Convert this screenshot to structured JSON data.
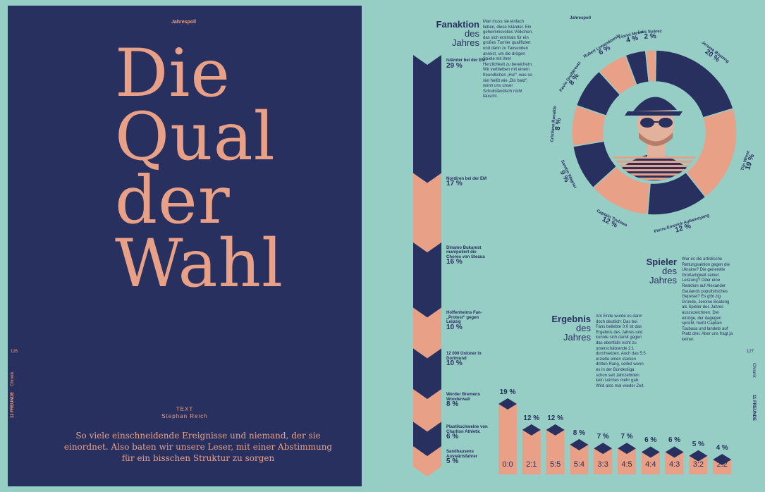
{
  "left_page": {
    "kicker": "Jahrespoll",
    "headline": [
      "Die",
      "Qual",
      "der",
      "Wahl"
    ],
    "text_label": "TEXT",
    "author": "Stephan Reich",
    "lead": "So viele einschneidende Ereignisse und niemand, der sie einordnet. Also baten wir unsere Leser, mit einer Abstimmung für ein bisschen Struktur zu sorgen",
    "page_number": "126",
    "section": "Chronik",
    "magazine": "11 FREUNDE"
  },
  "right_page": {
    "page_number": "127",
    "section": "Chronik",
    "magazine": "11 FREUNDE",
    "kicker": "Jahrespoll",
    "fanaktion": {
      "title": "Fanaktion",
      "subtitle_1": "des",
      "subtitle_2": "Jahres",
      "body": "Man muss sie einfach lieben, diese Isländer. Ein geheimnisvolles Völkchen, das sich erstmals für ein großes Turnier qualifiziert und dann zu Tausenden anreist, um die drögen Spiele mit ihrer Herzlichkeit zu bereichern. Wir verbleiben mit einem freundlichen „Hu!“, was so viel heißt wie „Bis bald“, wenn uns unser Schulisländisch nicht täuscht."
    },
    "spieler": {
      "title": "Spieler",
      "subtitle_1": "des",
      "subtitle_2": "Jahres",
      "body": "War es die artistische Rettungsaktion gegen die Ukraine? Die generelle Großartigkeit seiner Leistung? Oder eine Reaktion auf Alexander Gaulands populistisches Gepesel? Es gibt zig Gründe, Jerome Boateng als Spieler des Jahres auszuzeichnen. Der einzige, der dagegen spricht, heißt Captain Tsubasa und landete auf Platz drei. Aber uns fragt ja keiner."
    },
    "ergebnis": {
      "title": "Ergebnis",
      "subtitle_1": "des",
      "subtitle_2": "Jahres",
      "body": "Am Ende wurde es dann doch deutlich: Das bei Fans beliebte 0:0 ist das Ergebnis des Jahres und konnte sich damit gegen das ebenfalls nicht zu unterschätzende 2:1 durchsetzen. Auch das 5:5 erzielte einen starken dritten Rang, selbst wenn es in der Bundesliga schon seit Jahrzehnten kein solches mehr gab. Wird also mal wieder Zeit."
    },
    "fan_items": [
      {
        "label": "Isländer bei der EM",
        "pct": "29 %"
      },
      {
        "label": "Nordiren bei der EM",
        "pct": "17 %"
      },
      {
        "label": "Dinamo Bukarest manipuliert die Choreo von Steaua",
        "pct": "16 %"
      },
      {
        "label": "Hoffenheims Fan-„Protest“ gegen Leipzig",
        "pct": "10 %"
      },
      {
        "label": "12 000 Unioner in Dortmund",
        "pct": "10 %"
      },
      {
        "label": "Werder Bremens Wonderwall",
        "pct": "8 %"
      },
      {
        "label": "Plastikschweine von Charlton Athletic",
        "pct": "6 %"
      },
      {
        "label": "Sandhausens Auswärtsfahrer",
        "pct": "5 %"
      }
    ],
    "player_items": [
      {
        "name": "Jerome Boateng",
        "pct": "20 %"
      },
      {
        "name": "Tim Wiese",
        "pct": "19 %"
      },
      {
        "name": "Pierre-Emerick Aubameyang",
        "pct": "12 %"
      },
      {
        "name": "Captain Tsubasa",
        "pct": "12 %"
      },
      {
        "name": "Sandro Wagner",
        "pct": "9 %"
      },
      {
        "name": "Cristiano Ronaldo",
        "pct": "8 %"
      },
      {
        "name": "Kevin Großkreutz",
        "pct": "8 %"
      },
      {
        "name": "Robert Lewandowski",
        "pct": "6 %"
      },
      {
        "name": "Lionel Messi",
        "pct": "4 %"
      },
      {
        "name": "Luis Suárez",
        "pct": "2 %"
      }
    ],
    "result_items": [
      {
        "score": "0:0",
        "pct": "19 %"
      },
      {
        "score": "2:1",
        "pct": "12 %"
      },
      {
        "score": "5:5",
        "pct": "12 %"
      },
      {
        "score": "5:4",
        "pct": "8 %"
      },
      {
        "score": "3:3",
        "pct": "7 %"
      },
      {
        "score": "4:5",
        "pct": "7 %"
      },
      {
        "score": "4:4",
        "pct": "6 %"
      },
      {
        "score": "4:3",
        "pct": "6 %"
      },
      {
        "score": "3:2",
        "pct": "5 %"
      },
      {
        "score": "2:2",
        "pct": "4 %"
      }
    ],
    "colors": {
      "navy": "#28305f",
      "salmon": "#e8a087",
      "mint": "#96cdc5"
    }
  },
  "chart_data": [
    {
      "type": "bar",
      "categories": [
        "Isländer bei der EM",
        "Nordiren bei der EM",
        "Dinamo Bukarest manipuliert die Choreo von Steaua",
        "Hoffenheims Fan-„Protest“ gegen Leipzig",
        "12 000 Unioner in Dortmund",
        "Werder Bremens Wonderwall",
        "Plastikschweine von Charlton Athletic",
        "Sandhausens Auswärtsfahrer"
      ],
      "values": [
        29,
        17,
        16,
        10,
        10,
        8,
        6,
        5
      ],
      "title": "Fanaktion des Jahres"
    },
    {
      "type": "pie",
      "categories": [
        "Jerome Boateng",
        "Tim Wiese",
        "Pierre-Emerick Aubameyang",
        "Captain Tsubasa",
        "Sandro Wagner",
        "Cristiano Ronaldo",
        "Kevin Großkreutz",
        "Robert Lewandowski",
        "Lionel Messi",
        "Luis Suárez"
      ],
      "values": [
        20,
        19,
        12,
        12,
        9,
        8,
        8,
        6,
        4,
        2
      ],
      "title": "Spieler des Jahres"
    },
    {
      "type": "bar",
      "categories": [
        "0:0",
        "2:1",
        "5:5",
        "5:4",
        "3:3",
        "4:5",
        "4:4",
        "4:3",
        "3:2",
        "2:2"
      ],
      "values": [
        19,
        12,
        12,
        8,
        7,
        7,
        6,
        6,
        5,
        4
      ],
      "title": "Ergebnis des Jahres"
    }
  ]
}
